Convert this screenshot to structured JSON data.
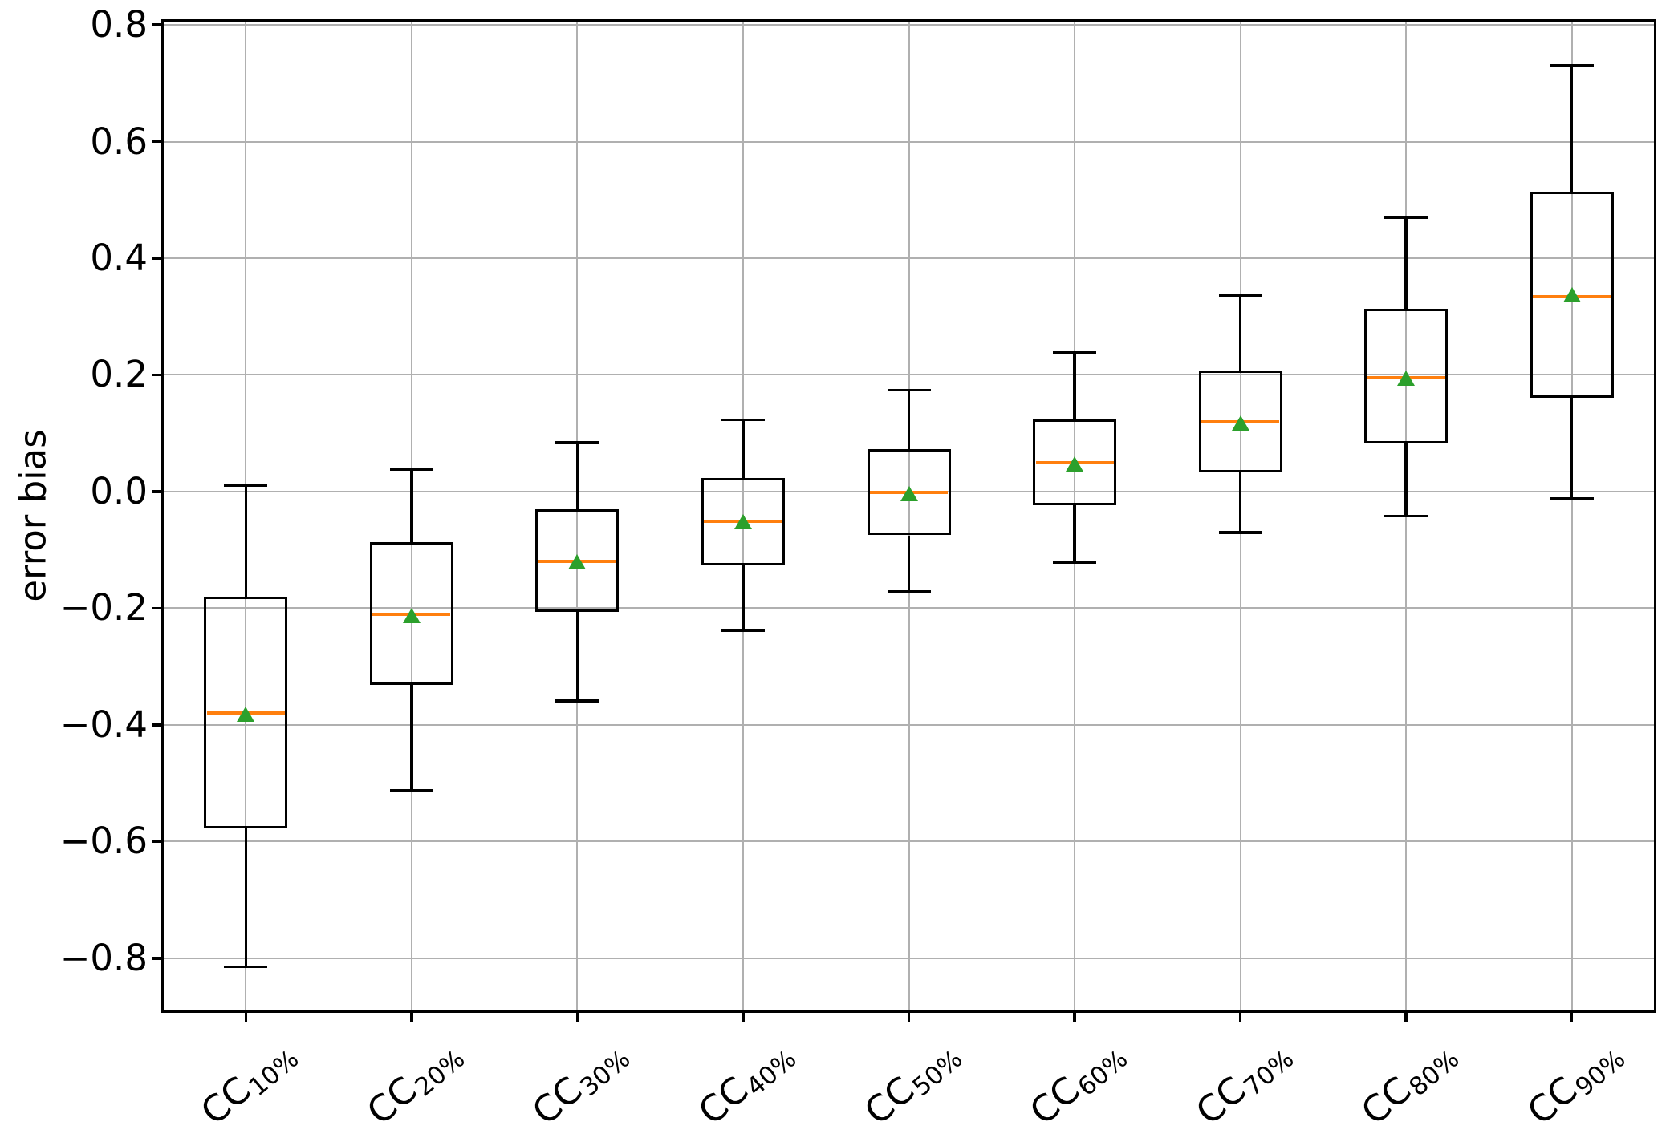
{
  "chart_data": {
    "type": "boxplot",
    "title": "",
    "xlabel": "",
    "ylabel": "error bias",
    "grid": true,
    "legend": null,
    "ylim": [
      -0.891,
      0.807
    ],
    "y_ticks": [
      0.8,
      0.6,
      0.4,
      0.2,
      0.0,
      -0.2,
      -0.4,
      -0.6,
      -0.8
    ],
    "y_tick_labels": [
      "0.8",
      "0.6",
      "0.4",
      "0.2",
      "0.0",
      "−0.2",
      "−0.4",
      "−0.6",
      "−0.8"
    ],
    "category_prefix": "CC",
    "categories": [
      "10%",
      "20%",
      "30%",
      "40%",
      "50%",
      "60%",
      "70%",
      "80%",
      "90%"
    ],
    "series": [
      {
        "category": "CC 10%",
        "whislo": -0.815,
        "q1": -0.578,
        "med": -0.379,
        "mean": -0.381,
        "q3": -0.18,
        "whishi": 0.01
      },
      {
        "category": "CC 20%",
        "whislo": -0.513,
        "q1": -0.331,
        "med": -0.21,
        "mean": -0.212,
        "q3": -0.086,
        "whishi": 0.038
      },
      {
        "category": "CC 30%",
        "whislo": -0.359,
        "q1": -0.206,
        "med": -0.119,
        "mean": -0.12,
        "q3": -0.03,
        "whishi": 0.084
      },
      {
        "category": "CC 40%",
        "whislo": -0.238,
        "q1": -0.126,
        "med": -0.051,
        "mean": -0.052,
        "q3": 0.023,
        "whishi": 0.123
      },
      {
        "category": "CC 50%",
        "whislo": -0.172,
        "q1": -0.075,
        "med": -0.002,
        "mean": -0.004,
        "q3": 0.073,
        "whishi": 0.174
      },
      {
        "category": "CC 60%",
        "whislo": -0.121,
        "q1": -0.023,
        "med": 0.049,
        "mean": 0.047,
        "q3": 0.124,
        "whishi": 0.238
      },
      {
        "category": "CC 70%",
        "whislo": -0.07,
        "q1": 0.033,
        "med": 0.119,
        "mean": 0.117,
        "q3": 0.207,
        "whishi": 0.336
      },
      {
        "category": "CC 80%",
        "whislo": -0.042,
        "q1": 0.083,
        "med": 0.195,
        "mean": 0.194,
        "q3": 0.314,
        "whishi": 0.47
      },
      {
        "category": "CC 90%",
        "whislo": -0.012,
        "q1": 0.161,
        "med": 0.334,
        "mean": 0.337,
        "q3": 0.514,
        "whishi": 0.731
      }
    ],
    "mean_marker_shape": "triangle-up",
    "colors": {
      "box_edge": "#000000",
      "median": "#ff7f0e",
      "mean_marker": "#2ca02c",
      "grid": "#b0b0b0",
      "background": "#ffffff"
    }
  }
}
